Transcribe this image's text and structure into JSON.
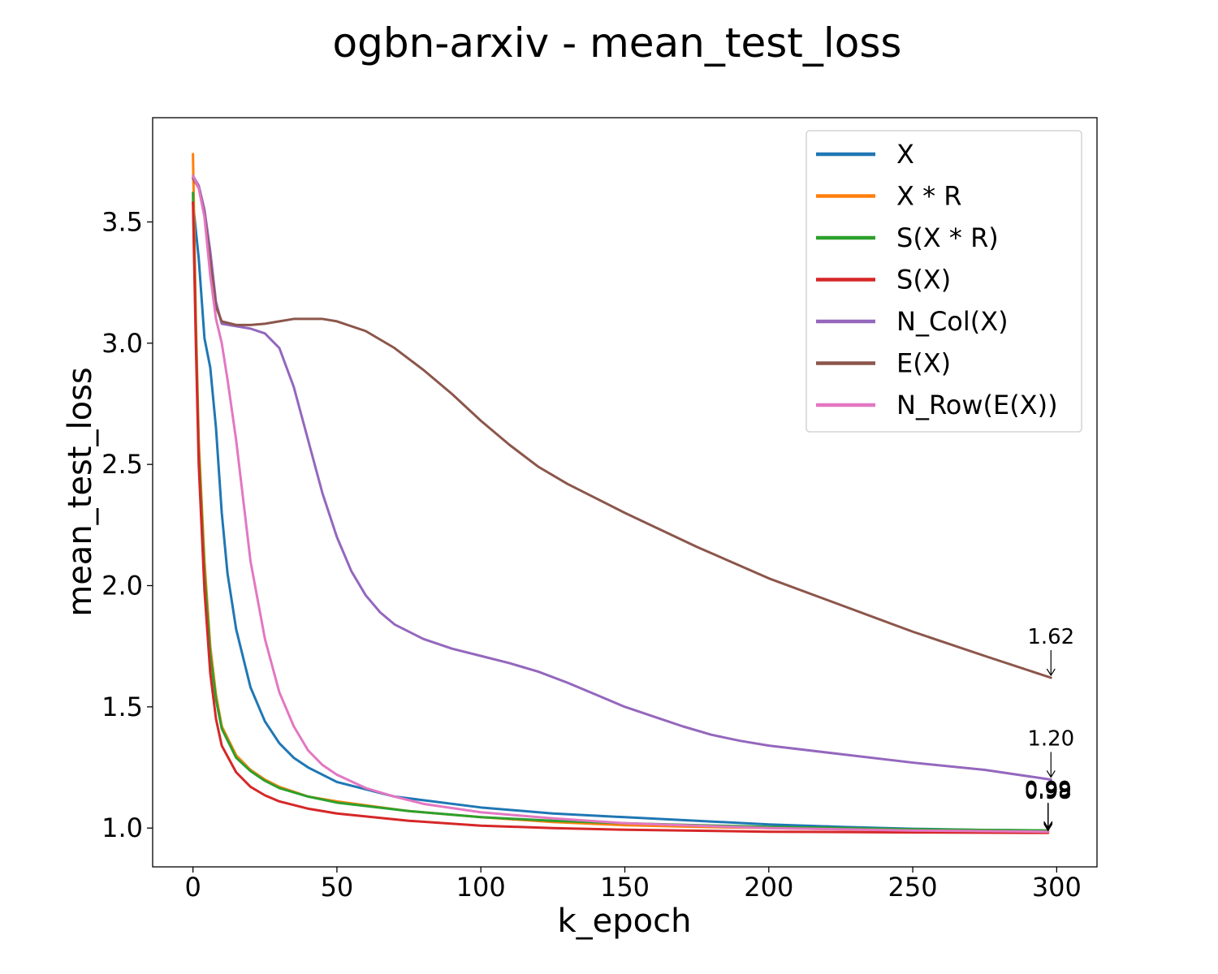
{
  "chart_data": {
    "type": "line",
    "title": "ogbn-arxiv - mean_test_loss",
    "xlabel": "k_epoch",
    "ylabel": "mean_test_loss",
    "xlim": [
      -14,
      314
    ],
    "ylim": [
      0.84,
      3.93
    ],
    "xticks": [
      0,
      50,
      100,
      150,
      200,
      250,
      300
    ],
    "yticks": [
      1.0,
      1.5,
      2.0,
      2.5,
      3.0,
      3.5
    ],
    "xtick_labels": [
      "0",
      "50",
      "100",
      "150",
      "200",
      "250",
      "300"
    ],
    "ytick_labels": [
      "1.0",
      "1.5",
      "2.0",
      "2.5",
      "3.0",
      "3.5"
    ],
    "grid": false,
    "legend_position": "upper right",
    "series": [
      {
        "name": "X",
        "color": "#1f77b4",
        "points": [
          [
            0,
            3.58
          ],
          [
            2,
            3.35
          ],
          [
            4,
            3.02
          ],
          [
            6,
            2.9
          ],
          [
            8,
            2.65
          ],
          [
            10,
            2.3
          ],
          [
            12,
            2.05
          ],
          [
            15,
            1.82
          ],
          [
            20,
            1.58
          ],
          [
            25,
            1.44
          ],
          [
            30,
            1.35
          ],
          [
            35,
            1.29
          ],
          [
            40,
            1.25
          ],
          [
            50,
            1.19
          ],
          [
            60,
            1.16
          ],
          [
            70,
            1.13
          ],
          [
            80,
            1.115
          ],
          [
            100,
            1.085
          ],
          [
            125,
            1.06
          ],
          [
            150,
            1.045
          ],
          [
            175,
            1.03
          ],
          [
            200,
            1.015
          ],
          [
            225,
            1.005
          ],
          [
            250,
            0.997
          ],
          [
            275,
            0.992
          ],
          [
            297,
            0.99
          ]
        ]
      },
      {
        "name": "X * R",
        "color": "#ff7f0e",
        "points": [
          [
            0,
            3.78
          ],
          [
            1,
            3.1
          ],
          [
            2,
            2.6
          ],
          [
            4,
            2.1
          ],
          [
            6,
            1.75
          ],
          [
            8,
            1.55
          ],
          [
            10,
            1.42
          ],
          [
            15,
            1.3
          ],
          [
            20,
            1.24
          ],
          [
            25,
            1.2
          ],
          [
            30,
            1.17
          ],
          [
            40,
            1.13
          ],
          [
            50,
            1.11
          ],
          [
            75,
            1.07
          ],
          [
            100,
            1.045
          ],
          [
            125,
            1.025
          ],
          [
            150,
            1.012
          ],
          [
            175,
            1.005
          ],
          [
            200,
            1.0
          ],
          [
            250,
            0.99
          ],
          [
            297,
            0.985
          ]
        ]
      },
      {
        "name": "S(X * R)",
        "color": "#2ca02c",
        "points": [
          [
            0,
            3.62
          ],
          [
            1,
            3.05
          ],
          [
            2,
            2.55
          ],
          [
            4,
            2.05
          ],
          [
            6,
            1.72
          ],
          [
            8,
            1.53
          ],
          [
            10,
            1.41
          ],
          [
            15,
            1.29
          ],
          [
            20,
            1.235
          ],
          [
            25,
            1.195
          ],
          [
            30,
            1.165
          ],
          [
            40,
            1.13
          ],
          [
            50,
            1.105
          ],
          [
            75,
            1.07
          ],
          [
            100,
            1.045
          ],
          [
            125,
            1.03
          ],
          [
            150,
            1.02
          ],
          [
            175,
            1.012
          ],
          [
            200,
            1.005
          ],
          [
            250,
            0.995
          ],
          [
            297,
            0.99
          ]
        ]
      },
      {
        "name": "S(X)",
        "color": "#d62728",
        "points": [
          [
            0,
            3.58
          ],
          [
            1,
            3.0
          ],
          [
            2,
            2.5
          ],
          [
            4,
            1.98
          ],
          [
            6,
            1.64
          ],
          [
            8,
            1.45
          ],
          [
            10,
            1.34
          ],
          [
            15,
            1.23
          ],
          [
            20,
            1.17
          ],
          [
            25,
            1.135
          ],
          [
            30,
            1.11
          ],
          [
            40,
            1.08
          ],
          [
            50,
            1.06
          ],
          [
            75,
            1.03
          ],
          [
            100,
            1.01
          ],
          [
            125,
            1.0
          ],
          [
            150,
            0.993
          ],
          [
            200,
            0.985
          ],
          [
            250,
            0.982
          ],
          [
            297,
            0.98
          ]
        ]
      },
      {
        "name": "N_Col(X)",
        "color": "#9467bd",
        "points": [
          [
            0,
            3.69
          ],
          [
            2,
            3.65
          ],
          [
            4,
            3.55
          ],
          [
            6,
            3.38
          ],
          [
            8,
            3.17
          ],
          [
            10,
            3.08
          ],
          [
            15,
            3.07
          ],
          [
            20,
            3.06
          ],
          [
            25,
            3.04
          ],
          [
            30,
            2.98
          ],
          [
            35,
            2.82
          ],
          [
            40,
            2.6
          ],
          [
            45,
            2.38
          ],
          [
            50,
            2.2
          ],
          [
            55,
            2.06
          ],
          [
            60,
            1.96
          ],
          [
            65,
            1.89
          ],
          [
            70,
            1.84
          ],
          [
            80,
            1.78
          ],
          [
            90,
            1.74
          ],
          [
            100,
            1.71
          ],
          [
            110,
            1.68
          ],
          [
            120,
            1.645
          ],
          [
            130,
            1.6
          ],
          [
            140,
            1.55
          ],
          [
            150,
            1.5
          ],
          [
            160,
            1.46
          ],
          [
            170,
            1.42
          ],
          [
            180,
            1.385
          ],
          [
            190,
            1.36
          ],
          [
            200,
            1.34
          ],
          [
            225,
            1.305
          ],
          [
            250,
            1.27
          ],
          [
            275,
            1.24
          ],
          [
            298,
            1.2
          ]
        ]
      },
      {
        "name": "E(X)",
        "color": "#8c564b",
        "points": [
          [
            0,
            3.68
          ],
          [
            2,
            3.64
          ],
          [
            4,
            3.53
          ],
          [
            6,
            3.34
          ],
          [
            8,
            3.15
          ],
          [
            10,
            3.09
          ],
          [
            15,
            3.075
          ],
          [
            20,
            3.075
          ],
          [
            25,
            3.08
          ],
          [
            30,
            3.09
          ],
          [
            35,
            3.1
          ],
          [
            40,
            3.1
          ],
          [
            45,
            3.1
          ],
          [
            50,
            3.09
          ],
          [
            60,
            3.05
          ],
          [
            70,
            2.98
          ],
          [
            80,
            2.89
          ],
          [
            90,
            2.79
          ],
          [
            100,
            2.68
          ],
          [
            110,
            2.58
          ],
          [
            120,
            2.49
          ],
          [
            130,
            2.42
          ],
          [
            140,
            2.36
          ],
          [
            150,
            2.3
          ],
          [
            175,
            2.16
          ],
          [
            200,
            2.03
          ],
          [
            225,
            1.92
          ],
          [
            250,
            1.81
          ],
          [
            275,
            1.71
          ],
          [
            298,
            1.62
          ]
        ]
      },
      {
        "name": "N_Row(E(X))",
        "color": "#e377c2",
        "points": [
          [
            0,
            3.69
          ],
          [
            2,
            3.64
          ],
          [
            4,
            3.52
          ],
          [
            6,
            3.28
          ],
          [
            8,
            3.1
          ],
          [
            10,
            3.0
          ],
          [
            12,
            2.85
          ],
          [
            15,
            2.6
          ],
          [
            18,
            2.3
          ],
          [
            20,
            2.1
          ],
          [
            25,
            1.78
          ],
          [
            30,
            1.56
          ],
          [
            35,
            1.42
          ],
          [
            40,
            1.32
          ],
          [
            45,
            1.26
          ],
          [
            50,
            1.22
          ],
          [
            60,
            1.165
          ],
          [
            70,
            1.13
          ],
          [
            80,
            1.1
          ],
          [
            100,
            1.065
          ],
          [
            125,
            1.04
          ],
          [
            150,
            1.02
          ],
          [
            175,
            1.01
          ],
          [
            200,
            1.0
          ],
          [
            250,
            0.99
          ],
          [
            297,
            0.985
          ]
        ]
      }
    ],
    "annotations": [
      {
        "text": "1.62",
        "series": "E(X)"
      },
      {
        "text": "1.20",
        "series": "N_Col(X)"
      },
      {
        "text": "0.98",
        "series": "S(X)"
      },
      {
        "text": "0.99",
        "series": "X * R"
      },
      {
        "text": "0.99",
        "series": "S(X * R)"
      },
      {
        "text": "0.98",
        "series": "N_Row(E(X))"
      },
      {
        "text": "0.99",
        "series": "X"
      }
    ]
  }
}
